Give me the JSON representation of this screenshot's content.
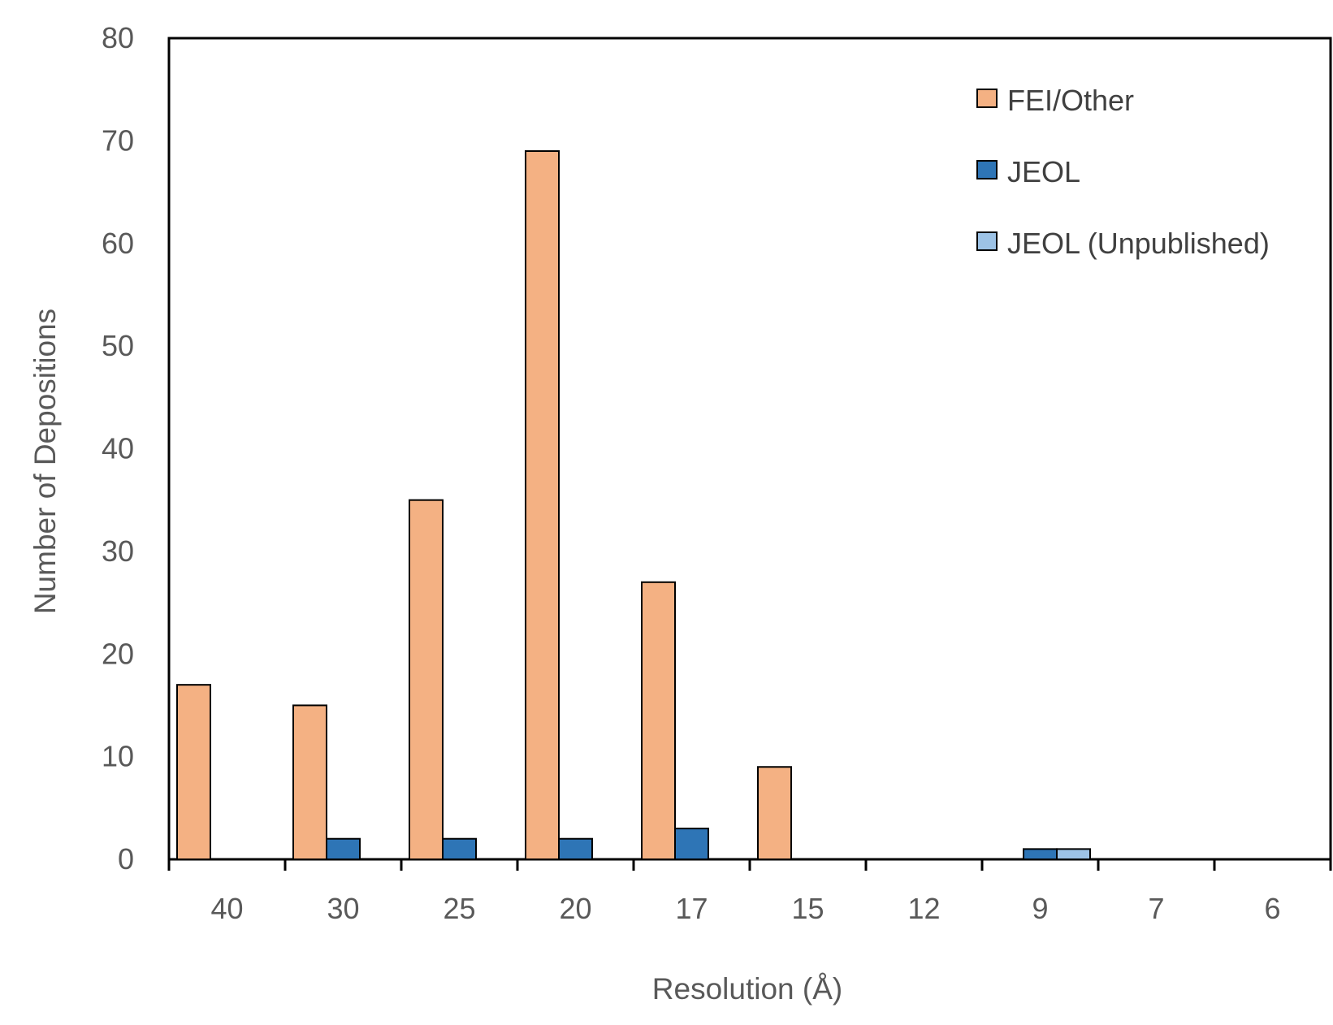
{
  "chart_data": {
    "type": "bar",
    "title": "",
    "xlabel": "Resolution (Å)",
    "ylabel": "Number of Depositions",
    "categories": [
      "40",
      "30",
      "25",
      "20",
      "17",
      "15",
      "12",
      "9",
      "7",
      "6"
    ],
    "series": [
      {
        "name": "FEI/Other",
        "color": "#F4B183",
        "values": [
          17,
          15,
          35,
          69,
          27,
          9,
          0,
          0,
          0,
          0
        ]
      },
      {
        "name": "JEOL",
        "color": "#2E75B6",
        "values": [
          0,
          2,
          2,
          2,
          3,
          0,
          0,
          1,
          0,
          0
        ]
      },
      {
        "name": "JEOL (Unpublished)",
        "color": "#9DC3E6",
        "values": [
          0,
          0,
          0,
          0,
          0,
          0,
          0,
          1,
          0,
          0
        ]
      }
    ],
    "ylim": [
      0,
      80
    ],
    "yticks": [
      0,
      10,
      20,
      30,
      40,
      50,
      60,
      70,
      80
    ],
    "grid": false,
    "legend_position": "top-right"
  }
}
